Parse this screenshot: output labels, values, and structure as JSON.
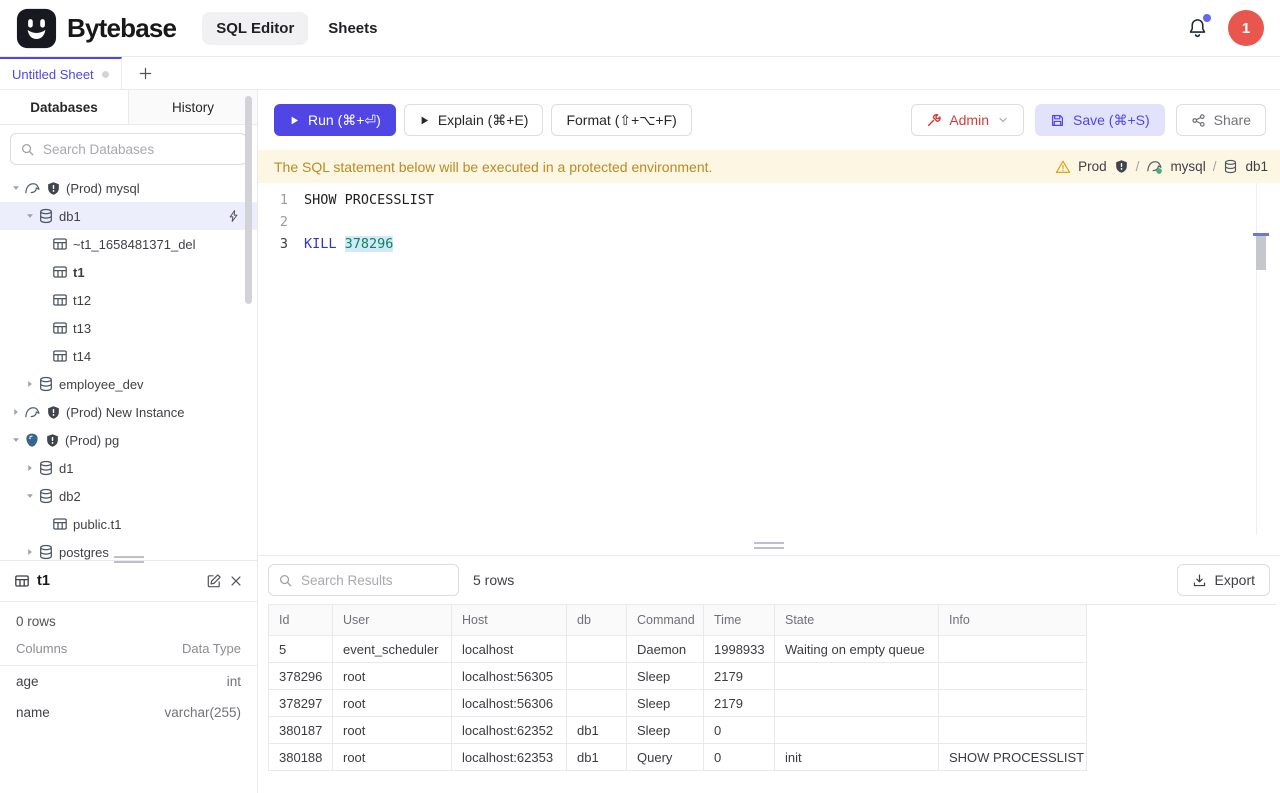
{
  "app": {
    "brand": "Bytebase",
    "nav": [
      {
        "label": "SQL Editor",
        "active": true
      },
      {
        "label": "Sheets",
        "active": false
      }
    ],
    "notifications": {
      "bell_icon": "bell-icon",
      "unread_dot": true
    },
    "avatar_label": "1"
  },
  "sheet_tabs": {
    "tabs": [
      {
        "label": "Untitled Sheet",
        "active": true
      }
    ],
    "add_button": "+"
  },
  "sidebar": {
    "tabs": [
      {
        "label": "Databases",
        "active": true
      },
      {
        "label": "History",
        "active": false
      }
    ],
    "search_placeholder": "Search Databases",
    "tree": [
      {
        "level": 0,
        "caret": "down",
        "icons": [
          "mysql-icon",
          "shield-icon"
        ],
        "label": "(Prod) mysql"
      },
      {
        "level": 1,
        "caret": "down",
        "icons": [
          "database-icon"
        ],
        "label": "db1",
        "selected": true,
        "trailing_icon": "lightning-icon"
      },
      {
        "level": 2,
        "caret": "none",
        "icons": [
          "table-icon"
        ],
        "label": "~t1_1658481371_del"
      },
      {
        "level": 2,
        "caret": "none",
        "icons": [
          "table-icon"
        ],
        "label": "t1",
        "bold": true
      },
      {
        "level": 2,
        "caret": "none",
        "icons": [
          "table-icon"
        ],
        "label": "t12"
      },
      {
        "level": 2,
        "caret": "none",
        "icons": [
          "table-icon"
        ],
        "label": "t13"
      },
      {
        "level": 2,
        "caret": "none",
        "icons": [
          "table-icon"
        ],
        "label": "t14"
      },
      {
        "level": 1,
        "caret": "right",
        "icons": [
          "database-icon"
        ],
        "label": "employee_dev"
      },
      {
        "level": 0,
        "caret": "right",
        "icons": [
          "mysql-icon",
          "shield-icon"
        ],
        "label": "(Prod) New Instance"
      },
      {
        "level": 0,
        "caret": "down",
        "icons": [
          "postgres-icon",
          "shield-icon"
        ],
        "label": "(Prod) pg"
      },
      {
        "level": 1,
        "caret": "right",
        "icons": [
          "database-icon"
        ],
        "label": "d1"
      },
      {
        "level": 1,
        "caret": "down",
        "icons": [
          "database-icon"
        ],
        "label": "db2"
      },
      {
        "level": 2,
        "caret": "none",
        "icons": [
          "table-icon"
        ],
        "label": "public.t1"
      },
      {
        "level": 1,
        "caret": "right",
        "icons": [
          "database-icon"
        ],
        "label": "postgres"
      }
    ]
  },
  "schema_panel": {
    "table_icon": "table-icon",
    "title": "t1",
    "row_count": "0 rows",
    "columns_header": "Columns",
    "type_header": "Data Type",
    "columns": [
      {
        "name": "age",
        "type": "int"
      },
      {
        "name": "name",
        "type": "varchar(255)"
      }
    ]
  },
  "toolbar": {
    "run_label": "Run (⌘+⏎)",
    "explain_label": "Explain (⌘+E)",
    "format_label": "Format (⇧+⌥+F)",
    "admin_label": "Admin",
    "save_label": "Save (⌘+S)",
    "share_label": "Share"
  },
  "banner": {
    "message": "The SQL statement below will be executed in a protected environment.",
    "breadcrumb": {
      "environment": "Prod",
      "instance": "mysql",
      "database": "db1",
      "separator": "/"
    }
  },
  "editor": {
    "lines": [
      {
        "number": "1",
        "tokens": [
          {
            "text": "SHOW PROCESSLIST",
            "style": "statement"
          }
        ]
      },
      {
        "number": "2",
        "tokens": []
      },
      {
        "number": "3",
        "tokens": [
          {
            "text": "KILL",
            "style": "keyword"
          },
          {
            "text": " ",
            "style": "plain"
          },
          {
            "text": "378296",
            "style": "number-highlighted"
          }
        ]
      }
    ]
  },
  "results": {
    "search_placeholder": "Search Results",
    "row_count": "5 rows",
    "export_label": "Export",
    "table": {
      "columns": [
        "Id",
        "User",
        "Host",
        "db",
        "Command",
        "Time",
        "State",
        "Info"
      ],
      "rows": [
        [
          "5",
          "event_scheduler",
          "localhost",
          "",
          "Daemon",
          "1998933",
          "Waiting on empty queue",
          ""
        ],
        [
          "378296",
          "root",
          "localhost:56305",
          "",
          "Sleep",
          "2179",
          "",
          ""
        ],
        [
          "378297",
          "root",
          "localhost:56306",
          "",
          "Sleep",
          "2179",
          "",
          ""
        ],
        [
          "380187",
          "root",
          "localhost:62352",
          "db1",
          "Sleep",
          "0",
          "",
          ""
        ],
        [
          "380188",
          "root",
          "localhost:62353",
          "db1",
          "Query",
          "0",
          "init",
          "SHOW PROCESSLIST"
        ]
      ]
    }
  },
  "colors": {
    "accent": "#4f46e5",
    "avatar": "#e8564e",
    "admin_red": "#cf3f36",
    "banner_bg": "#fcf6e3",
    "banner_text": "#bb8a23",
    "sql_keyword": "#3333cc",
    "sql_number": "#098658",
    "selection_highlight": "#d5e8fa",
    "tree_selected_bg": "#eceefb"
  }
}
